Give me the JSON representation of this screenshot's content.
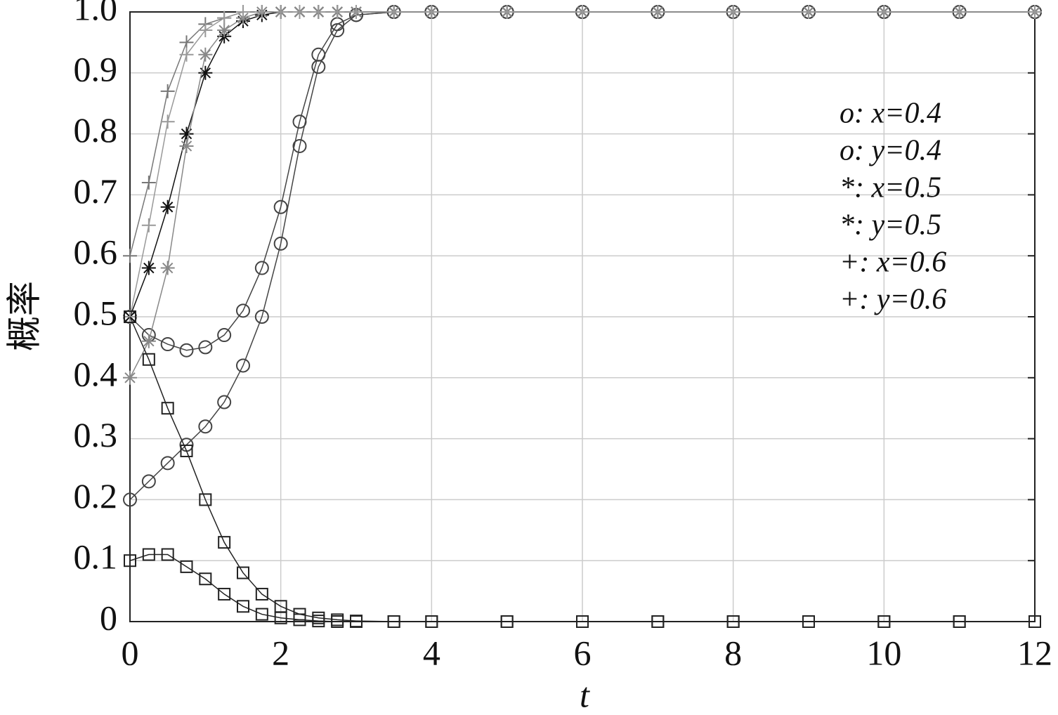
{
  "chart_data": {
    "type": "line",
    "xlabel": "t",
    "ylabel": "概率",
    "x": [
      0,
      0.25,
      0.5,
      0.75,
      1,
      1.25,
      1.5,
      1.75,
      2,
      2.25,
      2.5,
      2.75,
      3,
      3.5,
      4,
      5,
      6,
      7,
      8,
      9,
      10,
      11,
      12
    ],
    "xlim": [
      0,
      12
    ],
    "xticks": [
      0,
      2,
      4,
      6,
      8,
      10,
      12
    ],
    "ylim": [
      0,
      1
    ],
    "yticks": [
      0,
      0.1,
      0.2,
      0.3,
      0.4,
      0.5,
      0.6,
      0.7,
      0.8,
      0.9,
      {
        "value": 1,
        "label": "1.0"
      }
    ],
    "grid": true,
    "series": [
      {
        "name": "o:  x=0.4",
        "marker": "circle",
        "color": "#444444",
        "values": [
          0.5,
          0.47,
          0.455,
          0.445,
          0.45,
          0.47,
          0.51,
          0.58,
          0.68,
          0.82,
          0.93,
          0.98,
          0.995,
          1,
          1,
          1,
          1,
          1,
          1,
          1,
          1,
          1,
          1
        ]
      },
      {
        "name": "o:  y=0.4",
        "marker": "circle",
        "color": "#444444",
        "values": [
          0.2,
          0.23,
          0.26,
          0.29,
          0.32,
          0.36,
          0.42,
          0.5,
          0.62,
          0.78,
          0.91,
          0.97,
          0.995,
          1,
          1,
          1,
          1,
          1,
          1,
          1,
          1,
          1,
          1
        ]
      },
      {
        "name": "*:  x=0.5",
        "marker": "star",
        "color": "#111111",
        "values": [
          0.5,
          0.58,
          0.68,
          0.8,
          0.9,
          0.96,
          0.985,
          0.995,
          1,
          1,
          1,
          1,
          1,
          1,
          1,
          1,
          1,
          1,
          1,
          1,
          1,
          1,
          1
        ]
      },
      {
        "name": "*:  y=0.5",
        "marker": "star",
        "color": "#888888",
        "values": [
          0.4,
          0.46,
          0.58,
          0.78,
          0.93,
          0.97,
          0.99,
          1,
          1,
          1,
          1,
          1,
          1,
          1,
          1,
          1,
          1,
          1,
          1,
          1,
          1,
          1,
          1
        ]
      },
      {
        "name": "+:  x=0.6",
        "marker": "plus",
        "color": "#777777",
        "values": [
          0.6,
          0.72,
          0.87,
          0.95,
          0.98,
          0.99,
          1,
          1,
          1,
          1,
          1,
          1,
          1,
          1,
          1,
          1,
          1,
          1,
          1,
          1,
          1,
          1,
          1
        ]
      },
      {
        "name": "+:  y=0.6",
        "marker": "plus",
        "color": "#999999",
        "values": [
          0.5,
          0.65,
          0.82,
          0.93,
          0.97,
          0.99,
          1,
          1,
          1,
          1,
          1,
          1,
          1,
          1,
          1,
          1,
          1,
          1,
          1,
          1,
          1,
          1,
          1
        ]
      },
      {
        "marker": "square",
        "color": "#222222",
        "values": [
          0.5,
          0.43,
          0.35,
          0.28,
          0.2,
          0.13,
          0.08,
          0.045,
          0.025,
          0.012,
          0.006,
          0.003,
          0.001,
          0,
          0,
          0,
          0,
          0,
          0,
          0,
          0,
          0,
          0
        ]
      },
      {
        "marker": "square",
        "color": "#222222",
        "values": [
          0.1,
          0.11,
          0.11,
          0.09,
          0.07,
          0.045,
          0.025,
          0.012,
          0.006,
          0.003,
          0.001,
          0,
          0,
          0,
          0,
          0,
          0,
          0,
          0,
          0,
          0,
          0,
          0
        ]
      }
    ]
  }
}
